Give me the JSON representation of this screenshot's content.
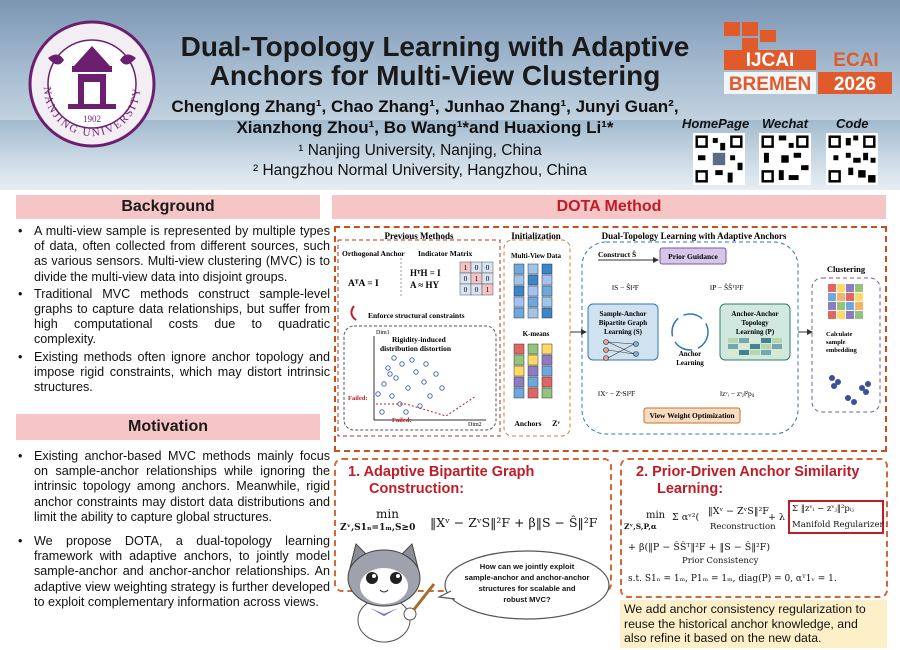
{
  "header": {
    "title_line1": "Dual-Topology Learning with Adaptive",
    "title_line2": "Anchors for Multi-View Clustering",
    "authors_line1": "Chenglong Zhang¹, Chao Zhang¹, Junhao Zhang¹, Junyi Guan²,",
    "authors_line2": "Xianzhong Zhou¹, Bo Wang¹*and Huaxiong Li¹*",
    "affil1": "¹ Nanjing University, Nanjing, China",
    "affil2": "² Hangzhou Normal University, Hangzhou, China",
    "logo_text": "NANJING UNIVERSITY",
    "logo_year": "1902",
    "conf_line1_left": "IJCAI",
    "conf_line1_right": "ECAI",
    "conf_line2_left": "BREMEN",
    "conf_line2_right": "2026",
    "qr_labels": [
      "HomePage",
      "Wechat",
      "Code"
    ]
  },
  "background": {
    "heading": "Background",
    "items": [
      "A multi-view sample is represented by multiple types of data, often collected from different sources, such as various sensors. Multi-view clustering (MVC) is to divide the multi-view data into disjoint groups.",
      "Traditional MVC methods construct sample-level graphs to capture data relationships, but suffer from high computational costs due to quadratic complexity.",
      "Existing methods often ignore anchor topology and impose rigid constraints, which may distort intrinsic structures."
    ]
  },
  "motivation": {
    "heading": "Motivation",
    "items": [
      "Existing anchor-based MVC methods mainly focus on sample-anchor relationships while ignoring the intrinsic topology among anchors. Meanwhile, rigid anchor constraints may distort data distributions and limit the ability to capture global structures.",
      "We propose DOTA, a dual-topology learning framework with adaptive anchors, to jointly model sample-anchor and anchor-anchor relationships. An adaptive view weighting strategy is further developed to exploit complementary information across views."
    ]
  },
  "method": {
    "heading": "DOTA  Method",
    "fig": {
      "previous_methods": "Previous Methods",
      "orthogonal_anchor": "Orthogonal Anchor",
      "indicator_matrix": "Indicator Matrix",
      "eq_ata": "AᵀA = I",
      "eq_hth": "HᵀH = I",
      "eq_ahy": "A ≈ HY",
      "enforce": "Enforce structural constraints",
      "rigidity_line1": "Rigidity-induced",
      "rigidity_line2": "distribution distortion",
      "dim1": "Dim1",
      "dim2": "Dim2",
      "failed": "Failed:",
      "initialization": "Initialization",
      "multiview_data": "Multi-View Data",
      "kmeans": "K-means",
      "anchors": "Anchors",
      "anchors_sym": "Zᵛ",
      "dual_title": "Dual-Topology Learning with Adaptive Anchors",
      "construct": "Construct Ŝ",
      "prior_guidance": "Prior Guidance",
      "norm_s": "‖S − Ŝ‖²F",
      "norm_p": "‖P − ŜŜᵀ‖²F",
      "sab_line1": "Sample-Anchor",
      "sab_line2": "Bipartite Graph",
      "sab_line3": "Learning (S)",
      "aat_line1": "Anchor-Anchor",
      "aat_line2": "Topology",
      "aat_line3": "Learning (P)",
      "anchor_learning_line1": "Anchor",
      "anchor_learning_line2": "Learning",
      "recon": "‖Xᵛ − ZᵛS‖²F",
      "manifold": "‖zᵛᵢ − zᵛⱼ‖²pᵢⱼ",
      "view_weight": "View Weight Optimization",
      "clustering": "Clustering",
      "calc_line1": "Calculate",
      "calc_line2": "sample",
      "calc_line3": "embedding",
      "indicator_values": [
        "1",
        "0",
        "0",
        "0",
        "1",
        "0",
        "0",
        "0",
        "1"
      ]
    }
  },
  "box1": {
    "title_line1": "1.  Adaptive Bipartite Graph",
    "title_line2": "Construction:",
    "eq_min": "min",
    "eq_sub": "Zᵛ,S1ₙ=1ₘ,S≥0",
    "eq_body": "‖Xᵛ − ZᵛS‖²F + β‖S − Ŝ‖²F",
    "bubble_line1": "How can we jointly exploit",
    "bubble_line2": "sample-anchor and anchor-anchor",
    "bubble_line3": "structures for scalable and",
    "bubble_line4": "robust MVC?"
  },
  "box2": {
    "title_line1": "2.  Prior-Driven Anchor Similarity",
    "title_line2": "Learning:",
    "eq_min": "min",
    "eq_sub": "Zᵛ,S,P,α",
    "eq_sum": "Σ αᵛ²(",
    "eq_recon": "‖Xᵛ − ZᵛS‖²F",
    "eq_recon_label": "Reconstruction",
    "eq_lambda": "+ λ",
    "eq_manifold": "Σ ‖zᵛᵢ − zᵛⱼ‖²pᵢⱼ",
    "eq_manifold_label": "Manifold Regularizer",
    "eq_prior": "+ β(‖P − ŜŜᵀ‖²F + ‖S − Ŝ‖²F)",
    "eq_prior_label": "Prior Consistency",
    "eq_st": "s.t.  S1ₙ = 1ₘ, P1ₘ = 1ₘ, diag(P) = 0, αᵀ1ᵥ = 1."
  },
  "note": {
    "text": "We add anchor consistency regularization to reuse the historical anchor knowledge, and also refine it based on the new data."
  },
  "colors": {
    "section_header": "#f6c6c6",
    "accent_red": "#c01c28",
    "orange_border": "#c8501e",
    "note_bg": "#fdf0c9",
    "ijcai_orange": "#e05a2b"
  }
}
